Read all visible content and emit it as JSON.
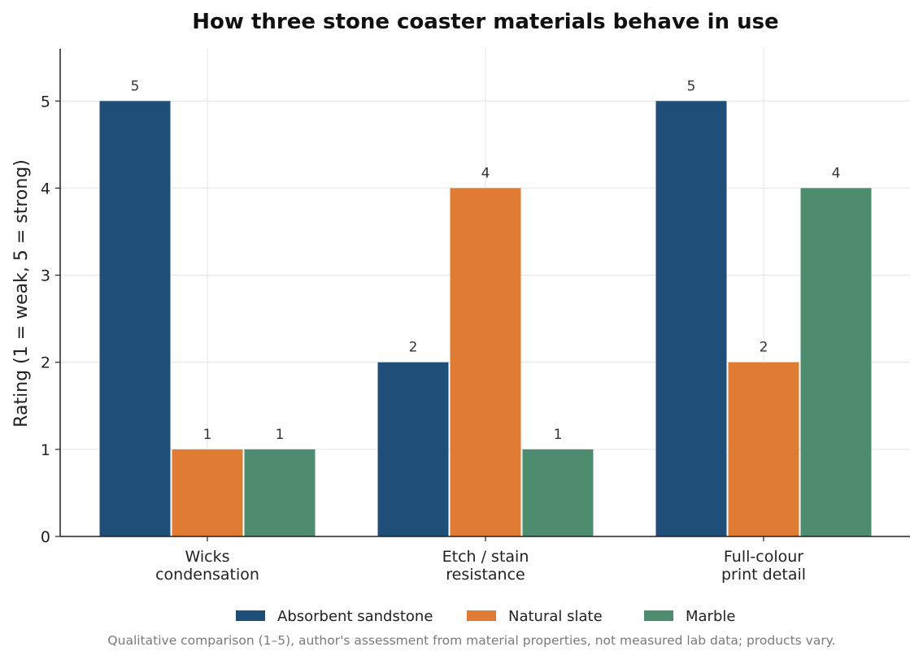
{
  "chart_data": {
    "type": "bar",
    "title": "How three stone coaster materials behave in use",
    "ylabel": "Rating (1 = weak, 5 = strong)",
    "xlabel": "",
    "ylim": [
      0,
      5.6
    ],
    "yticks": [
      0,
      1,
      2,
      3,
      4,
      5
    ],
    "categories": [
      [
        "Wicks",
        "condensation"
      ],
      [
        "Etch / stain",
        "resistance"
      ],
      [
        "Full-colour",
        "print detail"
      ]
    ],
    "series": [
      {
        "name": "Absorbent sandstone",
        "color": "#1f4e79",
        "values": [
          5,
          2,
          5
        ]
      },
      {
        "name": "Natural slate",
        "color": "#e07b33",
        "values": [
          1,
          4,
          2
        ]
      },
      {
        "name": "Marble",
        "color": "#4d8c6f",
        "values": [
          1,
          1,
          4
        ]
      }
    ],
    "grid": true,
    "legend_position": "bottom-center",
    "footnote": "Qualitative comparison (1–5), author's assessment from material properties, not measured lab data; products vary."
  }
}
